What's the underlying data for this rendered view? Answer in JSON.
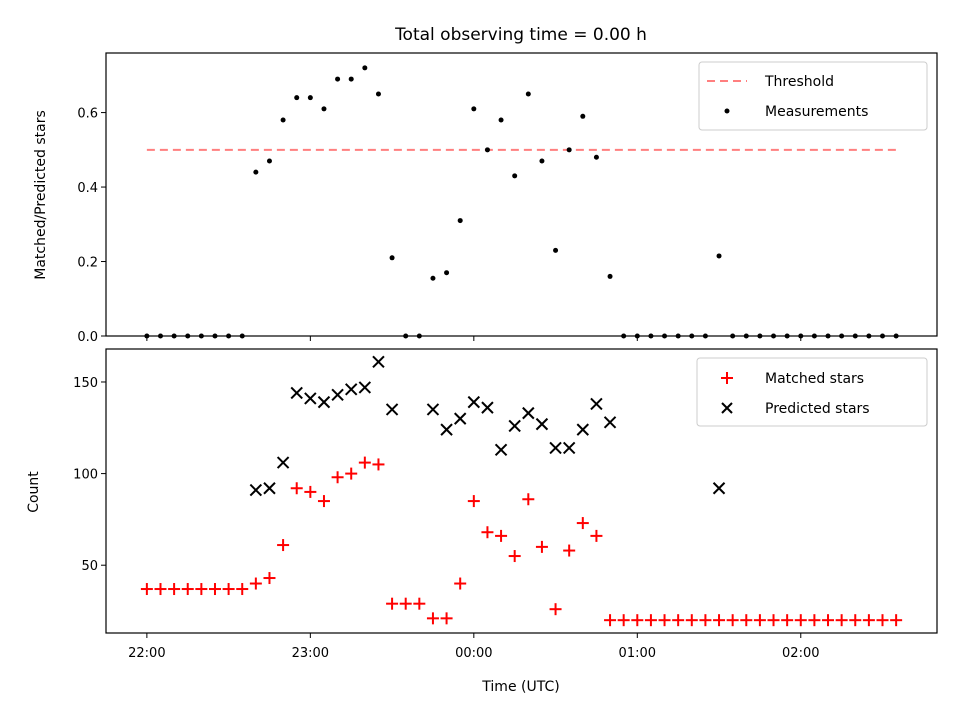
{
  "chart_data": [
    {
      "type": "scatter",
      "title": "Total observing time = 0.00 h",
      "xlabel": "",
      "ylabel": "Matched/Predicted stars",
      "xlim": [
        "21:45",
        "02:50"
      ],
      "ylim": [
        0,
        0.76
      ],
      "yticks": [
        0.0,
        0.2,
        0.4,
        0.6
      ],
      "ytick_labels": [
        "0.0",
        "0.2",
        "0.4",
        "0.6"
      ],
      "xticks": [
        "22:00",
        "23:00",
        "00:00",
        "01:00",
        "02:00"
      ],
      "show_xtick_labels": false,
      "grid": false,
      "legend": "top-right",
      "series": [
        {
          "name": "Threshold",
          "kind": "dashed-line",
          "color": "#ff7f7f",
          "points": [
            [
              "22:00",
              0.5
            ],
            [
              "02:35",
              0.5
            ]
          ]
        },
        {
          "name": "Measurements",
          "kind": "dots",
          "color": "#000000",
          "points": [
            [
              "22:00",
              0
            ],
            [
              "22:05",
              0
            ],
            [
              "22:10",
              0
            ],
            [
              "22:15",
              0
            ],
            [
              "22:20",
              0
            ],
            [
              "22:25",
              0
            ],
            [
              "22:30",
              0
            ],
            [
              "22:35",
              0
            ],
            [
              "22:40",
              0.44
            ],
            [
              "22:45",
              0.47
            ],
            [
              "22:50",
              0.58
            ],
            [
              "22:55",
              0.64
            ],
            [
              "23:00",
              0.64
            ],
            [
              "23:05",
              0.61
            ],
            [
              "23:10",
              0.69
            ],
            [
              "23:15",
              0.69
            ],
            [
              "23:20",
              0.72
            ],
            [
              "23:25",
              0.65
            ],
            [
              "23:30",
              0.21
            ],
            [
              "23:35",
              0
            ],
            [
              "23:40",
              0
            ],
            [
              "23:45",
              0.155
            ],
            [
              "23:50",
              0.17
            ],
            [
              "23:55",
              0.31
            ],
            [
              "00:00",
              0.61
            ],
            [
              "00:05",
              0.5
            ],
            [
              "00:10",
              0.58
            ],
            [
              "00:15",
              0.43
            ],
            [
              "00:20",
              0.65
            ],
            [
              "00:25",
              0.47
            ],
            [
              "00:30",
              0.23
            ],
            [
              "00:35",
              0.5
            ],
            [
              "00:40",
              0.59
            ],
            [
              "00:45",
              0.48
            ],
            [
              "00:50",
              0.16
            ],
            [
              "00:55",
              0
            ],
            [
              "01:00",
              0
            ],
            [
              "01:05",
              0
            ],
            [
              "01:10",
              0
            ],
            [
              "01:15",
              0
            ],
            [
              "01:20",
              0
            ],
            [
              "01:25",
              0
            ],
            [
              "01:30",
              0.215
            ],
            [
              "01:35",
              0
            ],
            [
              "01:40",
              0
            ],
            [
              "01:45",
              0
            ],
            [
              "01:50",
              0
            ],
            [
              "01:55",
              0
            ],
            [
              "02:00",
              0
            ],
            [
              "02:05",
              0
            ],
            [
              "02:10",
              0
            ],
            [
              "02:15",
              0
            ],
            [
              "02:20",
              0
            ],
            [
              "02:25",
              0
            ],
            [
              "02:30",
              0
            ],
            [
              "02:35",
              0
            ]
          ]
        }
      ]
    },
    {
      "type": "scatter",
      "title": "",
      "xlabel": "Time (UTC)",
      "ylabel": "Count",
      "xlim": [
        "21:45",
        "02:50"
      ],
      "ylim": [
        13,
        168
      ],
      "yticks": [
        50,
        100,
        150
      ],
      "ytick_labels": [
        "50",
        "100",
        "150"
      ],
      "xticks": [
        "22:00",
        "23:00",
        "00:00",
        "01:00",
        "02:00"
      ],
      "xtick_labels": [
        "22:00",
        "23:00",
        "00:00",
        "01:00",
        "02:00"
      ],
      "grid": false,
      "legend": "top-right",
      "series": [
        {
          "name": "Matched stars",
          "marker": "plus",
          "color": "#ff0000",
          "points": [
            [
              "22:00",
              37
            ],
            [
              "22:05",
              37
            ],
            [
              "22:10",
              37
            ],
            [
              "22:15",
              37
            ],
            [
              "22:20",
              37
            ],
            [
              "22:25",
              37
            ],
            [
              "22:30",
              37
            ],
            [
              "22:35",
              37
            ],
            [
              "22:40",
              40
            ],
            [
              "22:45",
              43
            ],
            [
              "22:50",
              61
            ],
            [
              "22:55",
              92
            ],
            [
              "23:00",
              90
            ],
            [
              "23:05",
              85
            ],
            [
              "23:10",
              98
            ],
            [
              "23:15",
              100
            ],
            [
              "23:20",
              106
            ],
            [
              "23:25",
              105
            ],
            [
              "23:30",
              29
            ],
            [
              "23:35",
              29
            ],
            [
              "23:40",
              29
            ],
            [
              "23:45",
              21
            ],
            [
              "23:50",
              21
            ],
            [
              "23:55",
              40
            ],
            [
              "00:00",
              85
            ],
            [
              "00:05",
              68
            ],
            [
              "00:10",
              66
            ],
            [
              "00:15",
              55
            ],
            [
              "00:20",
              86
            ],
            [
              "00:25",
              60
            ],
            [
              "00:30",
              26
            ],
            [
              "00:35",
              58
            ],
            [
              "00:40",
              73
            ],
            [
              "00:45",
              66
            ],
            [
              "00:50",
              20
            ],
            [
              "00:55",
              20
            ],
            [
              "01:00",
              20
            ],
            [
              "01:05",
              20
            ],
            [
              "01:10",
              20
            ],
            [
              "01:15",
              20
            ],
            [
              "01:20",
              20
            ],
            [
              "01:25",
              20
            ],
            [
              "01:30",
              20
            ],
            [
              "01:35",
              20
            ],
            [
              "01:40",
              20
            ],
            [
              "01:45",
              20
            ],
            [
              "01:50",
              20
            ],
            [
              "01:55",
              20
            ],
            [
              "02:00",
              20
            ],
            [
              "02:05",
              20
            ],
            [
              "02:10",
              20
            ],
            [
              "02:15",
              20
            ],
            [
              "02:20",
              20
            ],
            [
              "02:25",
              20
            ],
            [
              "02:30",
              20
            ],
            [
              "02:35",
              20
            ]
          ]
        },
        {
          "name": "Predicted stars",
          "marker": "cross",
          "color": "#000000",
          "points": [
            [
              "22:40",
              91
            ],
            [
              "22:45",
              92
            ],
            [
              "22:50",
              106
            ],
            [
              "22:55",
              144
            ],
            [
              "23:00",
              141
            ],
            [
              "23:05",
              139
            ],
            [
              "23:10",
              143
            ],
            [
              "23:15",
              146
            ],
            [
              "23:20",
              147
            ],
            [
              "23:25",
              161
            ],
            [
              "23:30",
              135
            ],
            [
              "23:45",
              135
            ],
            [
              "23:50",
              124
            ],
            [
              "23:55",
              130
            ],
            [
              "00:00",
              139
            ],
            [
              "00:05",
              136
            ],
            [
              "00:10",
              113
            ],
            [
              "00:15",
              126
            ],
            [
              "00:20",
              133
            ],
            [
              "00:25",
              127
            ],
            [
              "00:30",
              114
            ],
            [
              "00:35",
              114
            ],
            [
              "00:40",
              124
            ],
            [
              "00:45",
              138
            ],
            [
              "00:50",
              128
            ],
            [
              "01:30",
              92
            ]
          ]
        }
      ]
    }
  ]
}
